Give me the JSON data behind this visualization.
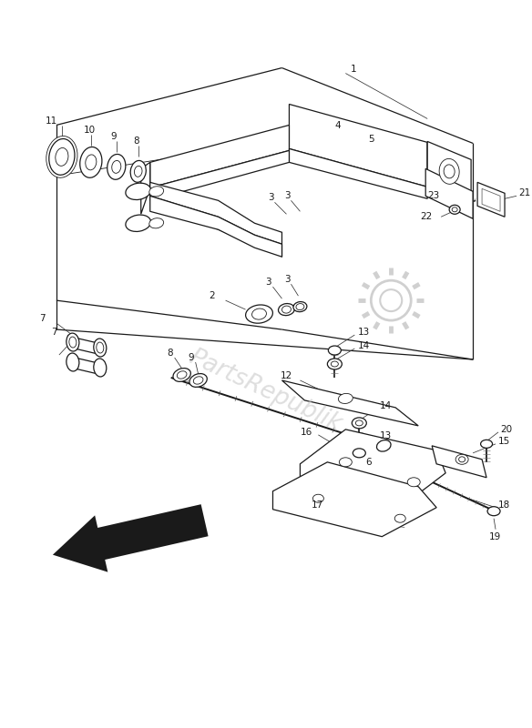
{
  "bg_color": "#ffffff",
  "lc": "#1a1a1a",
  "wm_color": "#c8c8c8",
  "wm_text": "PartsRepublik",
  "fs_label": 7.5,
  "lw_main": 0.9,
  "lw_thin": 0.6,
  "lw_leader": 0.55
}
